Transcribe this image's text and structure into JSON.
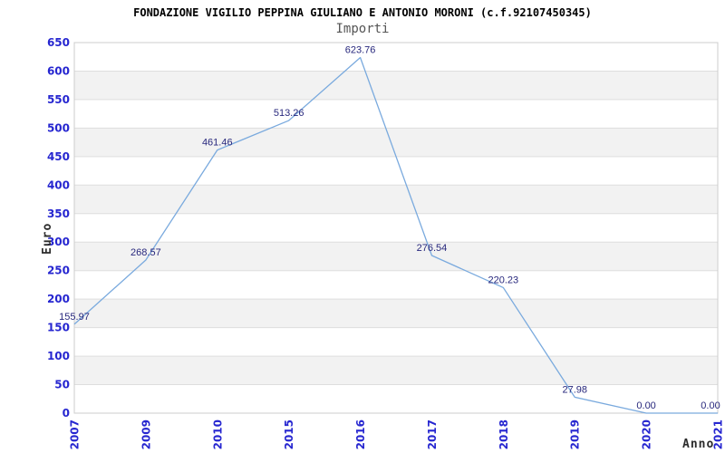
{
  "chart_data": {
    "type": "line",
    "title": "FONDAZIONE VIGILIO PEPPINA GIULIANO E ANTONIO MORONI (c.f.92107450345)",
    "subtitle": "Importi",
    "xlabel": "Anno",
    "ylabel": "Euro",
    "categories": [
      "2007",
      "2009",
      "2010",
      "2015",
      "2016",
      "2017",
      "2018",
      "2019",
      "2020",
      "2021"
    ],
    "values": [
      155.97,
      268.57,
      461.46,
      513.26,
      623.76,
      276.54,
      220.23,
      27.98,
      0.0,
      0.0
    ],
    "point_labels": [
      "155.97",
      "268.57",
      "461.46",
      "513.26",
      "623.76",
      "276.54",
      "220.23",
      "27.98",
      "0.00",
      "0.00"
    ],
    "ylim": [
      0,
      650
    ],
    "ytick_interval": 50,
    "yticks": [
      0,
      50,
      100,
      150,
      200,
      250,
      300,
      350,
      400,
      450,
      500,
      550,
      600,
      650
    ],
    "grid": "horizontal",
    "banded_background": true,
    "legend": "none",
    "colors": {
      "line": "#7aaade",
      "band": "#f2f2f2",
      "grid": "#dedede",
      "border": "#cdcdcd",
      "tick_label": "#2626d0",
      "data_label": "#28287d",
      "title": "#000000",
      "subtitle": "#555555",
      "axis_title": "#2b2b2b"
    }
  }
}
